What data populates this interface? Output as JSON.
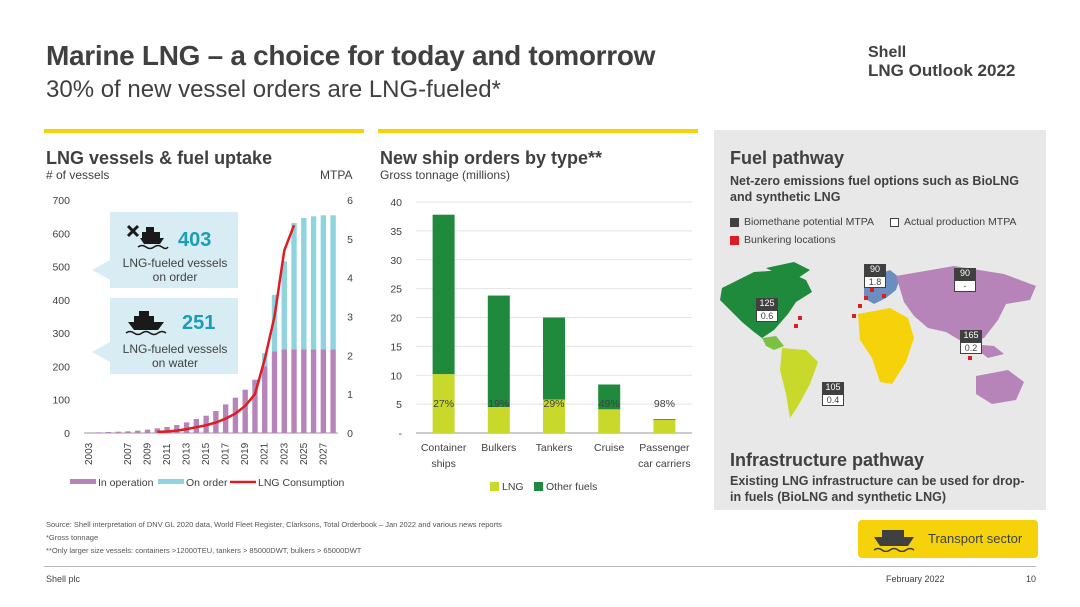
{
  "header": {
    "title": "Marine LNG – a choice for today and tomorrow",
    "subtitle": "30% of new vessel orders are LNG-fueled*",
    "brand_line1": "Shell",
    "brand_line2": "LNG Outlook 2022"
  },
  "left_chart_header": {
    "title": "LNG vessels & fuel uptake",
    "left_axis_label": "# of vessels",
    "right_axis_label": "MTPA"
  },
  "callouts": [
    {
      "number": "403",
      "label": "LNG-fueled vessels on order"
    },
    {
      "number": "251",
      "label": "LNG-fueled vessels on water"
    }
  ],
  "mid_chart_header": {
    "title": "New ship orders by type**",
    "subtitle": "Gross tonnage (millions)"
  },
  "fuel_pathway": {
    "title": "Fuel pathway",
    "description": "Net-zero emissions fuel options such as BioLNG and synthetic LNG",
    "legend_biomethane": "Biomethane potential MTPA",
    "legend_actual": "Actual production MTPA",
    "legend_bunkering": "Bunkering locations",
    "map_labels": [
      {
        "top": "125",
        "bottom": "0.6"
      },
      {
        "top": "90",
        "bottom": "1.8"
      },
      {
        "top": "90",
        "bottom": "-"
      },
      {
        "top": "165",
        "bottom": "0.2"
      },
      {
        "top": "105",
        "bottom": "0.4"
      }
    ]
  },
  "infrastructure": {
    "title": "Infrastructure pathway",
    "description": "Existing LNG infrastructure can be used for drop-in fuels (BioLNG and synthetic LNG)"
  },
  "transport_label": "Transport sector",
  "footnotes": [
    "Source: Shell interpretation of DNV GL 2020 data, World Fleet Register, Clarksons, Total Orderbook – Jan 2022 and various news reports",
    "*Gross tonnage",
    "**Only larger size vessels: containers >12000TEU, tankers > 85000DWT, bulkers > 65000DWT"
  ],
  "footer": {
    "company": "Shell plc",
    "date": "February 2022",
    "page": "10"
  },
  "colors": {
    "yellow": "#f5d20a",
    "in_operation": "#b684b8",
    "on_order": "#8fd3df",
    "consumption": "#dd1d21",
    "lng": "#c8d92b",
    "other_fuels": "#1f8a3c",
    "callout_number": "#1b9cb8"
  },
  "chart_data": [
    {
      "type": "bar",
      "title": "LNG vessels & fuel uptake",
      "ylabel": "# of vessels",
      "y2label": "MTPA",
      "ylim": [
        0,
        700
      ],
      "y2lim": [
        0,
        6
      ],
      "yticks": [
        "0",
        "100",
        "200",
        "300",
        "400",
        "500",
        "600",
        "700"
      ],
      "y2ticks": [
        "0",
        "1",
        "2",
        "3",
        "4",
        "5",
        "6"
      ],
      "xtick_labels": [
        "2003",
        "2007",
        "2009",
        "2011",
        "2013",
        "2015",
        "2017",
        "2019",
        "2021",
        "2023",
        "2025",
        "2027"
      ],
      "years": [
        2003,
        2004,
        2005,
        2006,
        2007,
        2008,
        2009,
        2010,
        2011,
        2012,
        2013,
        2014,
        2015,
        2016,
        2017,
        2018,
        2019,
        2020,
        2021,
        2022,
        2023,
        2024,
        2025,
        2026,
        2027,
        2028
      ],
      "series": [
        {
          "name": "In operation",
          "kind": "bar",
          "values": [
            1,
            2,
            3,
            4,
            5,
            7,
            10,
            14,
            18,
            24,
            32,
            42,
            52,
            66,
            86,
            106,
            130,
            160,
            200,
            245,
            251,
            251,
            251,
            251,
            251,
            251
          ]
        },
        {
          "name": "On order",
          "kind": "bar",
          "values": [
            0,
            0,
            0,
            0,
            0,
            0,
            0,
            0,
            0,
            0,
            0,
            0,
            0,
            0,
            0,
            0,
            0,
            0,
            40,
            170,
            265,
            380,
            395,
            400,
            403,
            403
          ]
        },
        {
          "name": "LNG Consumption",
          "kind": "line",
          "axis": "right",
          "x": [
            2010,
            2011,
            2012,
            2013,
            2014,
            2015,
            2016,
            2017,
            2018,
            2019,
            2020,
            2021,
            2022,
            2023,
            2024
          ],
          "values": [
            0.03,
            0.04,
            0.06,
            0.1,
            0.15,
            0.2,
            0.27,
            0.37,
            0.5,
            0.7,
            1.0,
            1.9,
            3.0,
            4.7,
            5.35
          ]
        }
      ],
      "legend": [
        "In operation",
        "On order",
        "LNG Consumption"
      ]
    },
    {
      "type": "bar",
      "title": "New ship orders by type**",
      "ylabel": "Gross tonnage (millions)",
      "ylim": [
        0,
        40
      ],
      "yticks": [
        "-",
        "5",
        "10",
        "15",
        "20",
        "25",
        "30",
        "35",
        "40"
      ],
      "categories": [
        "Container ships",
        "Bulkers",
        "Tankers",
        "Cruise",
        "Passenger car carriers"
      ],
      "category_lines": [
        [
          "Container",
          "ships"
        ],
        [
          "Bulkers"
        ],
        [
          "Tankers"
        ],
        [
          "Cruise"
        ],
        [
          "Passenger",
          "car carriers"
        ]
      ],
      "series": [
        {
          "name": "LNG",
          "values": [
            10.2,
            4.5,
            5.8,
            4.1,
            2.35
          ]
        },
        {
          "name": "Other fuels",
          "values": [
            27.6,
            19.3,
            14.2,
            4.3,
            0.05
          ]
        }
      ],
      "data_labels": [
        "27%",
        "19%",
        "29%",
        "49%",
        "98%"
      ],
      "legend": [
        "LNG",
        "Other fuels"
      ]
    }
  ]
}
